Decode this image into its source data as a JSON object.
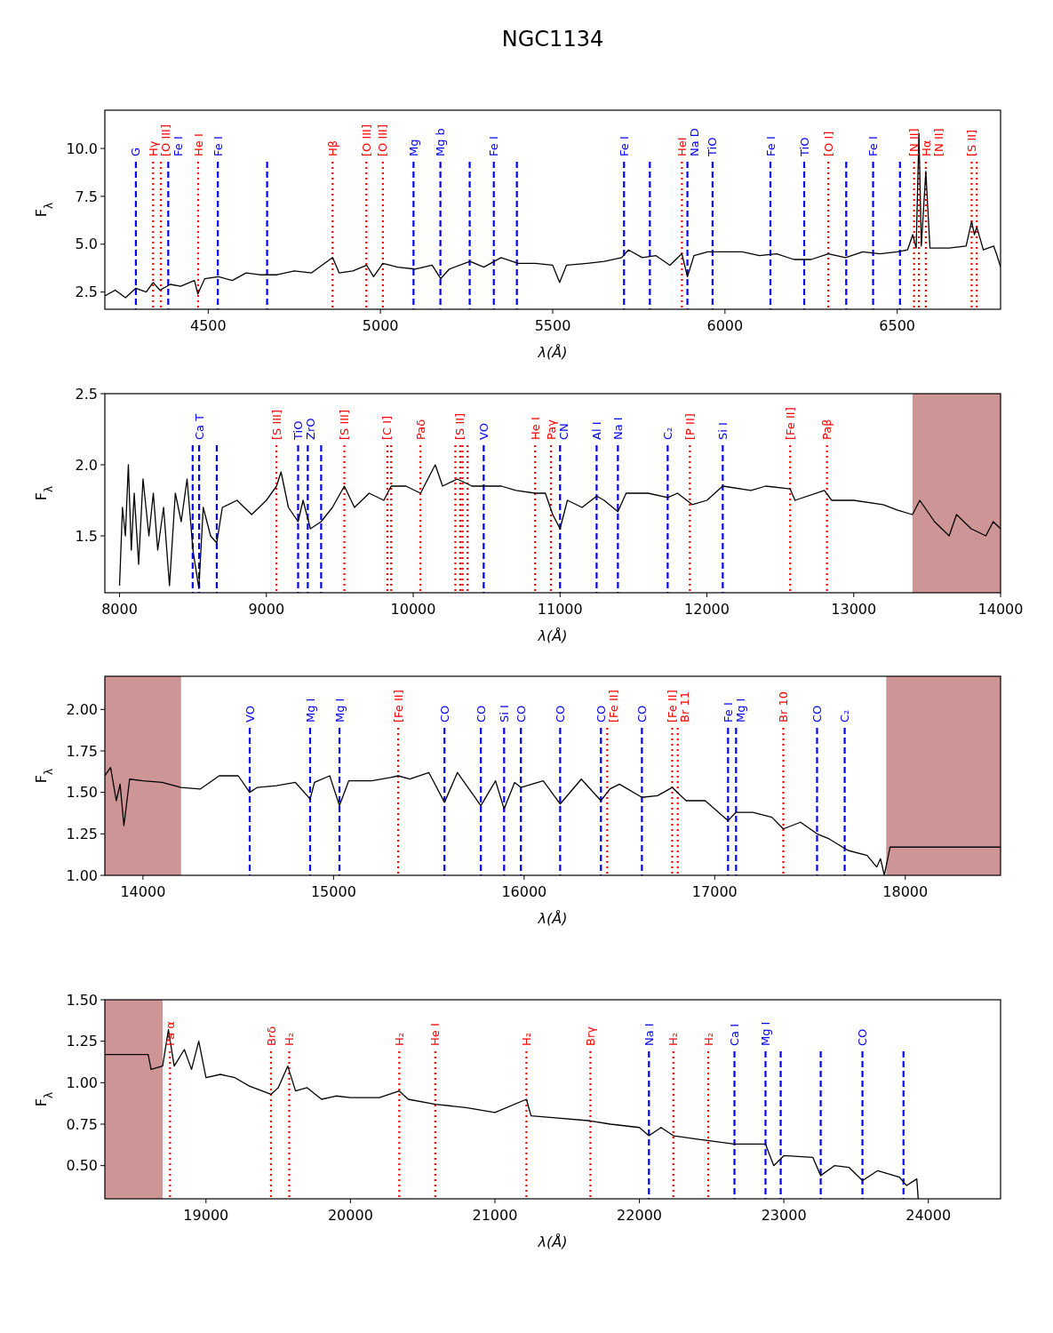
{
  "chart_data": [
    {
      "type": "line",
      "title": "NGC1134",
      "xlabel": "λ(Å)",
      "ylabel": "F$_{λ}$",
      "xlim": [
        4200,
        6800
      ],
      "ylim": [
        1.6,
        12
      ],
      "xticks": [
        4500,
        5000,
        5500,
        6000,
        6500
      ],
      "yticks": [
        2.5,
        {
          "value": 5,
          "label": "5.0"
        },
        7.5,
        {
          "value": 10,
          "label": "10.0"
        }
      ],
      "series": [
        {
          "color": "#000000",
          "x": [
            4200,
            4230,
            4260,
            4290,
            4320,
            4340,
            4360,
            4390,
            4420,
            4460,
            4470,
            4490,
            4530,
            4570,
            4610,
            4650,
            4700,
            4750,
            4800,
            4861,
            4880,
            4920,
            4960,
            4980,
            5007,
            5050,
            5100,
            5150,
            5175,
            5200,
            5260,
            5300,
            5350,
            5400,
            5450,
            5500,
            5520,
            5540,
            5600,
            5650,
            5700,
            5720,
            5760,
            5800,
            5840,
            5875,
            5891,
            5910,
            5950,
            6000,
            6050,
            6100,
            6150,
            6200,
            6250,
            6300,
            6350,
            6400,
            6450,
            6500,
            6530,
            6545,
            6555,
            6563,
            6570,
            6583,
            6595,
            6650,
            6700,
            6716,
            6724,
            6731,
            6750,
            6780,
            6790,
            6800
          ],
          "values": [
            2.3,
            2.6,
            2.2,
            2.7,
            2.5,
            3.0,
            2.6,
            2.9,
            2.8,
            3.1,
            2.4,
            3.2,
            3.3,
            3.1,
            3.5,
            3.4,
            3.4,
            3.6,
            3.5,
            4.3,
            3.5,
            3.6,
            3.9,
            3.3,
            4.0,
            3.8,
            3.7,
            3.9,
            3.2,
            3.7,
            4.1,
            3.8,
            4.3,
            4.0,
            4.0,
            3.9,
            3.0,
            3.9,
            4.0,
            4.1,
            4.3,
            4.7,
            4.3,
            4.4,
            3.9,
            4.5,
            3.3,
            4.4,
            4.6,
            4.6,
            4.6,
            4.4,
            4.5,
            4.2,
            4.2,
            4.5,
            4.3,
            4.6,
            4.5,
            4.6,
            4.7,
            5.5,
            4.8,
            10.8,
            4.9,
            8.8,
            4.8,
            4.8,
            4.9,
            6.2,
            5.5,
            5.9,
            4.7,
            4.9,
            4.4,
            3.8
          ]
        }
      ],
      "ref_lines": [
        {
          "axis": "x",
          "value": 4290,
          "label": "G",
          "color": "#0000ff",
          "line_style": "dashed"
        },
        {
          "axis": "x",
          "value": 4340,
          "label": "Hγ",
          "color": "#ff0000",
          "line_style": "dotted"
        },
        {
          "axis": "x",
          "value": 4363,
          "label": "[O III]",
          "color": "#ff0000",
          "line_style": "dotted"
        },
        {
          "axis": "x",
          "value": 4384,
          "label": "Fe I",
          "color": "#0000ff",
          "line_style": "dashed"
        },
        {
          "axis": "x",
          "value": 4471,
          "label": "He I",
          "color": "#ff0000",
          "line_style": "dotted"
        },
        {
          "axis": "x",
          "value": 4528,
          "label": "Fe I",
          "color": "#0000ff",
          "line_style": "dashed"
        },
        {
          "axis": "x",
          "value": 4671,
          "label": null,
          "color": "#0000ff",
          "line_style": "dashed"
        },
        {
          "axis": "x",
          "value": 4861,
          "label": "Hβ",
          "color": "#ff0000",
          "line_style": "dotted"
        },
        {
          "axis": "x",
          "value": 4959,
          "label": "[O III]",
          "color": "#ff0000",
          "line_style": "dotted"
        },
        {
          "axis": "x",
          "value": 5007,
          "label": "[O III]",
          "color": "#ff0000",
          "line_style": "dotted"
        },
        {
          "axis": "x",
          "value": 5096,
          "label": "Mg",
          "color": "#0000ff",
          "line_style": "dashed"
        },
        {
          "axis": "x",
          "value": 5174,
          "label": "Mg b",
          "color": "#0000ff",
          "line_style": "dashed"
        },
        {
          "axis": "x",
          "value": 5259,
          "label": null,
          "color": "#0000ff",
          "line_style": "dashed"
        },
        {
          "axis": "x",
          "value": 5329,
          "label": "Fe I",
          "color": "#0000ff",
          "line_style": "dashed"
        },
        {
          "axis": "x",
          "value": 5396,
          "label": null,
          "color": "#0000ff",
          "line_style": "dashed"
        },
        {
          "axis": "x",
          "value": 5707,
          "label": "Fe I",
          "color": "#0000ff",
          "line_style": "dashed"
        },
        {
          "axis": "x",
          "value": 5782,
          "label": null,
          "color": "#0000ff",
          "line_style": "dashed"
        },
        {
          "axis": "x",
          "value": 5875,
          "label": "HeI",
          "color": "#ff0000",
          "line_style": "dotted"
        },
        {
          "axis": "x",
          "value": 5891,
          "label": "Na D",
          "color": "#0000ff",
          "line_style": "dashed"
        },
        {
          "axis": "x",
          "value": 5964,
          "label": "TiO",
          "color": "#0000ff",
          "line_style": "dashed"
        },
        {
          "axis": "x",
          "value": 6132,
          "label": "Fe I",
          "color": "#0000ff",
          "line_style": "dashed"
        },
        {
          "axis": "x",
          "value": 6230,
          "label": "TiO",
          "color": "#0000ff",
          "line_style": "dashed"
        },
        {
          "axis": "x",
          "value": 6300,
          "label": "[O I]",
          "color": "#ff0000",
          "line_style": "dotted"
        },
        {
          "axis": "x",
          "value": 6352,
          "label": null,
          "color": "#0000ff",
          "line_style": "dashed"
        },
        {
          "axis": "x",
          "value": 6430,
          "label": "Fe I",
          "color": "#0000ff",
          "line_style": "dashed"
        },
        {
          "axis": "x",
          "value": 6508,
          "label": null,
          "color": "#0000ff",
          "line_style": "dashed"
        },
        {
          "axis": "x",
          "value": 6549,
          "label": "[N II]",
          "color": "#ff0000",
          "line_style": "dotted"
        },
        {
          "axis": "x",
          "value": 6563,
          "label": "Hα",
          "color": "#ff0000",
          "line_style": "dotted"
        },
        {
          "axis": "x",
          "value": 6583,
          "label": "[N II]",
          "color": "#ff0000",
          "line_style": "dotted"
        },
        {
          "axis": "x",
          "value": 6716,
          "label": "[S II]",
          "color": "#ff0000",
          "line_style": "dotted"
        },
        {
          "axis": "x",
          "value": 6731,
          "label": null,
          "color": "#ff0000",
          "line_style": "dotted"
        }
      ]
    },
    {
      "type": "line",
      "xlabel": "λ(Å)",
      "ylabel": "F$_{λ}$",
      "xlim": [
        7900,
        14000
      ],
      "ylim": [
        1.1,
        2.5
      ],
      "xticks": [
        8000,
        9000,
        10000,
        11000,
        12000,
        13000,
        14000
      ],
      "yticks": [
        1.5,
        {
          "value": 2,
          "label": "2.0"
        },
        2.5
      ],
      "series": [
        {
          "color": "#000000",
          "x": [
            8000,
            8020,
            8040,
            8060,
            8080,
            8100,
            8130,
            8160,
            8200,
            8230,
            8260,
            8300,
            8340,
            8380,
            8420,
            8460,
            8500,
            8540,
            8570,
            8620,
            8662,
            8700,
            8800,
            8900,
            9000,
            9069,
            9100,
            9150,
            9216,
            9250,
            9300,
            9373,
            9450,
            9531,
            9600,
            9700,
            9800,
            9850,
            9950,
            10050,
            10100,
            10150,
            10200,
            10300,
            10400,
            10500,
            10600,
            10700,
            10830,
            10900,
            10950,
            11000,
            11050,
            11150,
            11250,
            11300,
            11394,
            11450,
            11600,
            11733,
            11800,
            11900,
            12000,
            12108,
            12300,
            12400,
            12567,
            12600,
            12800,
            12850,
            13000,
            13200,
            13300,
            13400,
            13450,
            13550,
            13650,
            13700,
            13800,
            13900,
            13950,
            14000
          ],
          "values": [
            1.15,
            1.7,
            1.5,
            2.0,
            1.4,
            1.8,
            1.3,
            1.9,
            1.5,
            1.8,
            1.4,
            1.7,
            1.15,
            1.8,
            1.6,
            1.9,
            1.4,
            1.13,
            1.7,
            1.5,
            1.45,
            1.7,
            1.75,
            1.65,
            1.75,
            1.85,
            1.95,
            1.7,
            1.6,
            1.75,
            1.55,
            1.6,
            1.7,
            1.85,
            1.7,
            1.8,
            1.75,
            1.85,
            1.85,
            1.8,
            1.9,
            2.0,
            1.85,
            1.9,
            1.85,
            1.85,
            1.85,
            1.82,
            1.8,
            1.8,
            1.65,
            1.55,
            1.75,
            1.7,
            1.78,
            1.75,
            1.67,
            1.8,
            1.8,
            1.77,
            1.8,
            1.72,
            1.75,
            1.85,
            1.82,
            1.85,
            1.83,
            1.75,
            1.82,
            1.75,
            1.75,
            1.72,
            1.68,
            1.65,
            1.75,
            1.6,
            1.5,
            1.65,
            1.55,
            1.5,
            1.6,
            1.55
          ]
        }
      ],
      "bands": [
        {
          "axis": "x",
          "from": 13400,
          "to": 14000,
          "color": "#cd9595"
        }
      ],
      "ref_lines": [
        {
          "axis": "x",
          "value": 8498,
          "label": null,
          "color": "#0000ff",
          "line_style": "dashed"
        },
        {
          "axis": "x",
          "value": 8542,
          "label": "Ca T",
          "color": "#0000ff",
          "line_style": "dashed"
        },
        {
          "axis": "x",
          "value": 8662,
          "label": null,
          "color": "#0000ff",
          "line_style": "dashed"
        },
        {
          "axis": "x",
          "value": 9069,
          "label": "[S III]",
          "color": "#ff0000",
          "line_style": "dotted"
        },
        {
          "axis": "x",
          "value": 9216,
          "label": "TiO",
          "color": "#0000ff",
          "line_style": "dashed"
        },
        {
          "axis": "x",
          "value": 9282,
          "label": "ZrO",
          "color": "#0000ff",
          "line_style": "dashed"
        },
        {
          "axis": "x",
          "value": 9373,
          "label": null,
          "color": "#0000ff",
          "line_style": "dashed"
        },
        {
          "axis": "x",
          "value": 9531,
          "label": "[S III]",
          "color": "#ff0000",
          "line_style": "dotted"
        },
        {
          "axis": "x",
          "value": 9824,
          "label": "[C I]",
          "color": "#ff0000",
          "line_style": "dotted"
        },
        {
          "axis": "x",
          "value": 9850,
          "label": null,
          "color": "#ff0000",
          "line_style": "dotted"
        },
        {
          "axis": "x",
          "value": 10049,
          "label": "Paδ",
          "color": "#ff0000",
          "line_style": "dotted"
        },
        {
          "axis": "x",
          "value": 10287,
          "label": null,
          "color": "#ff0000",
          "line_style": "dotted"
        },
        {
          "axis": "x",
          "value": 10320,
          "label": "[S II]",
          "color": "#ff0000",
          "line_style": "dotted"
        },
        {
          "axis": "x",
          "value": 10336,
          "label": null,
          "color": "#ff0000",
          "line_style": "dotted"
        },
        {
          "axis": "x",
          "value": 10370,
          "label": null,
          "color": "#ff0000",
          "line_style": "dotted"
        },
        {
          "axis": "x",
          "value": 10480,
          "label": "VO",
          "color": "#0000ff",
          "line_style": "dashed"
        },
        {
          "axis": "x",
          "value": 10830,
          "label": "He I",
          "color": "#ff0000",
          "line_style": "dotted"
        },
        {
          "axis": "x",
          "value": 10938,
          "label": "Paγ",
          "color": "#ff0000",
          "line_style": "dotted"
        },
        {
          "axis": "x",
          "value": 11000,
          "label": "CN",
          "color": "#0000ff",
          "line_style": "dashed"
        },
        {
          "axis": "x",
          "value": 11249,
          "label": "Al I",
          "color": "#0000ff",
          "line_style": "dashed"
        },
        {
          "axis": "x",
          "value": 11394,
          "label": "Na I",
          "color": "#0000ff",
          "line_style": "dashed"
        },
        {
          "axis": "x",
          "value": 11733,
          "label": "C₂",
          "color": "#0000ff",
          "line_style": "dashed"
        },
        {
          "axis": "x",
          "value": 11884,
          "label": "[P II]",
          "color": "#ff0000",
          "line_style": "dotted"
        },
        {
          "axis": "x",
          "value": 12108,
          "label": "Si I",
          "color": "#0000ff",
          "line_style": "dashed"
        },
        {
          "axis": "x",
          "value": 12567,
          "label": "[Fe II]",
          "color": "#ff0000",
          "line_style": "dotted"
        },
        {
          "axis": "x",
          "value": 12818,
          "label": "Paβ",
          "color": "#ff0000",
          "line_style": "dotted"
        }
      ]
    },
    {
      "type": "line",
      "xlabel": "λ(Å)",
      "ylabel": "F$_{λ}$",
      "xlim": [
        13800,
        18500
      ],
      "ylim": [
        1.0,
        2.2
      ],
      "xticks": [
        14000,
        15000,
        16000,
        17000,
        18000
      ],
      "yticks": [
        {
          "value": 1,
          "label": "1.00"
        },
        1.25,
        {
          "value": 1.5,
          "label": "1.50"
        },
        1.75,
        {
          "value": 2,
          "label": "2.00"
        }
      ],
      "series": [
        {
          "color": "#000000",
          "x": [
            13800,
            13830,
            13860,
            13880,
            13900,
            13930,
            14000,
            14100,
            14200,
            14300,
            14400,
            14500,
            14560,
            14600,
            14700,
            14800,
            14877,
            14900,
            14980,
            15031,
            15080,
            15200,
            15300,
            15339,
            15400,
            15500,
            15582,
            15650,
            15773,
            15850,
            15895,
            15950,
            15983,
            16100,
            16189,
            16300,
            16403,
            16450,
            16500,
            16618,
            16700,
            16777,
            16850,
            16950,
            17070,
            17112,
            17200,
            17300,
            17360,
            17450,
            17537,
            17600,
            17700,
            17800,
            17850,
            17870,
            17890,
            17920,
            18500
          ],
          "values": [
            1.6,
            1.65,
            1.45,
            1.55,
            1.3,
            1.58,
            1.57,
            1.56,
            1.53,
            1.52,
            1.6,
            1.6,
            1.5,
            1.53,
            1.54,
            1.56,
            1.46,
            1.56,
            1.6,
            1.42,
            1.57,
            1.57,
            1.59,
            1.6,
            1.58,
            1.62,
            1.44,
            1.62,
            1.42,
            1.57,
            1.4,
            1.56,
            1.53,
            1.57,
            1.43,
            1.58,
            1.45,
            1.52,
            1.55,
            1.47,
            1.48,
            1.53,
            1.45,
            1.45,
            1.33,
            1.38,
            1.38,
            1.35,
            1.28,
            1.32,
            1.25,
            1.22,
            1.15,
            1.12,
            1.05,
            1.1,
            1.0,
            1.17,
            1.17
          ]
        }
      ],
      "bands": [
        {
          "axis": "x",
          "from": 13800,
          "to": 14200,
          "color": "#cd9595"
        },
        {
          "axis": "x",
          "from": 17900,
          "to": 18500,
          "color": "#cd9595"
        }
      ],
      "ref_lines": [
        {
          "axis": "x",
          "value": 14560,
          "label": "VO",
          "color": "#0000ff",
          "line_style": "dashed"
        },
        {
          "axis": "x",
          "value": 14877,
          "label": "Mg I",
          "color": "#0000ff",
          "line_style": "dashed"
        },
        {
          "axis": "x",
          "value": 15031,
          "label": "Mg I",
          "color": "#0000ff",
          "line_style": "dashed"
        },
        {
          "axis": "x",
          "value": 15339,
          "label": "[Fe II]",
          "color": "#ff0000",
          "line_style": "dotted"
        },
        {
          "axis": "x",
          "value": 15582,
          "label": "CO",
          "color": "#0000ff",
          "line_style": "dashed"
        },
        {
          "axis": "x",
          "value": 15773,
          "label": "CO",
          "color": "#0000ff",
          "line_style": "dashed"
        },
        {
          "axis": "x",
          "value": 15895,
          "label": "Si I",
          "color": "#0000ff",
          "line_style": "dashed"
        },
        {
          "axis": "x",
          "value": 15983,
          "label": "CO",
          "color": "#0000ff",
          "line_style": "dashed"
        },
        {
          "axis": "x",
          "value": 16189,
          "label": "CO",
          "color": "#0000ff",
          "line_style": "dashed"
        },
        {
          "axis": "x",
          "value": 16403,
          "label": "CO",
          "color": "#0000ff",
          "line_style": "dashed"
        },
        {
          "axis": "x",
          "value": 16436,
          "label": "[Fe II]",
          "color": "#ff0000",
          "line_style": "dotted"
        },
        {
          "axis": "x",
          "value": 16618,
          "label": "CO",
          "color": "#0000ff",
          "line_style": "dashed"
        },
        {
          "axis": "x",
          "value": 16777,
          "label": "[Fe II]",
          "color": "#ff0000",
          "line_style": "dotted"
        },
        {
          "axis": "x",
          "value": 16806,
          "label": "Br 11",
          "color": "#ff0000",
          "line_style": "dotted"
        },
        {
          "axis": "x",
          "value": 17070,
          "label": "Fe I",
          "color": "#0000ff",
          "line_style": "dashed"
        },
        {
          "axis": "x",
          "value": 17112,
          "label": "Mg I",
          "color": "#0000ff",
          "line_style": "dashed"
        },
        {
          "axis": "x",
          "value": 17360,
          "label": "Br 10",
          "color": "#ff0000",
          "line_style": "dotted"
        },
        {
          "axis": "x",
          "value": 17537,
          "label": "CO",
          "color": "#0000ff",
          "line_style": "dashed"
        },
        {
          "axis": "x",
          "value": 17682,
          "label": "C₂",
          "color": "#0000ff",
          "line_style": "dashed"
        }
      ]
    },
    {
      "type": "line",
      "xlabel": "λ(Å)",
      "ylabel": "F$_{λ}$",
      "xlim": [
        18300,
        24500
      ],
      "ylim": [
        0.3,
        1.5
      ],
      "xticks": [
        19000,
        20000,
        21000,
        22000,
        23000,
        24000
      ],
      "yticks": [
        {
          "value": 0.5,
          "label": "0.50"
        },
        0.75,
        {
          "value": 1,
          "label": "1.00"
        },
        1.25,
        {
          "value": 1.5,
          "label": "1.50"
        }
      ],
      "series": [
        {
          "color": "#000000",
          "x": [
            18300,
            18600,
            18620,
            18700,
            18740,
            18780,
            18850,
            18900,
            18950,
            19000,
            19100,
            19200,
            19300,
            19450,
            19500,
            19566,
            19620,
            19700,
            19800,
            19900,
            20000,
            20200,
            20338,
            20400,
            20587,
            20800,
            21000,
            21218,
            21250,
            21400,
            21661,
            21800,
            22000,
            22066,
            22150,
            22235,
            22400,
            22658,
            22873,
            22930,
            23000,
            23200,
            23255,
            23350,
            23450,
            23544,
            23650,
            23800,
            23850,
            23920,
            23930
          ],
          "values": [
            1.17,
            1.17,
            1.08,
            1.1,
            1.32,
            1.1,
            1.2,
            1.08,
            1.25,
            1.03,
            1.05,
            1.03,
            0.98,
            0.93,
            0.97,
            1.1,
            0.95,
            0.97,
            0.9,
            0.92,
            0.91,
            0.91,
            0.95,
            0.9,
            0.87,
            0.85,
            0.82,
            0.9,
            0.8,
            0.79,
            0.77,
            0.75,
            0.73,
            0.68,
            0.73,
            0.68,
            0.66,
            0.63,
            0.63,
            0.5,
            0.56,
            0.55,
            0.44,
            0.5,
            0.49,
            0.41,
            0.47,
            0.43,
            0.38,
            0.42,
            0.3
          ]
        }
      ],
      "bands": [
        {
          "axis": "x",
          "from": 18300,
          "to": 18700,
          "color": "#cd9595"
        }
      ],
      "ref_lines": [
        {
          "axis": "x",
          "value": 18751,
          "label": "Pa α",
          "color": "#ff0000",
          "line_style": "dotted"
        },
        {
          "axis": "x",
          "value": 19450,
          "label": "Brδ",
          "color": "#ff0000",
          "line_style": "dotted"
        },
        {
          "axis": "x",
          "value": 19576,
          "label": "H₂",
          "color": "#ff0000",
          "line_style": "dotted"
        },
        {
          "axis": "x",
          "value": 20338,
          "label": "H₂",
          "color": "#ff0000",
          "line_style": "dotted"
        },
        {
          "axis": "x",
          "value": 20587,
          "label": "He I",
          "color": "#ff0000",
          "line_style": "dotted"
        },
        {
          "axis": "x",
          "value": 21218,
          "label": "H₂",
          "color": "#ff0000",
          "line_style": "dotted"
        },
        {
          "axis": "x",
          "value": 21661,
          "label": "Brγ",
          "color": "#ff0000",
          "line_style": "dotted"
        },
        {
          "axis": "x",
          "value": 22066,
          "label": "Na I",
          "color": "#0000ff",
          "line_style": "dashed"
        },
        {
          "axis": "x",
          "value": 22235,
          "label": "H₂",
          "color": "#ff0000",
          "line_style": "dotted"
        },
        {
          "axis": "x",
          "value": 22477,
          "label": "H₂",
          "color": "#ff0000",
          "line_style": "dotted"
        },
        {
          "axis": "x",
          "value": 22658,
          "label": "Ca I",
          "color": "#0000ff",
          "line_style": "dashed"
        },
        {
          "axis": "x",
          "value": 22873,
          "label": "Mg I",
          "color": "#0000ff",
          "line_style": "dashed"
        },
        {
          "axis": "x",
          "value": 22978,
          "label": null,
          "color": "#0000ff",
          "line_style": "dashed"
        },
        {
          "axis": "x",
          "value": 23255,
          "label": null,
          "color": "#0000ff",
          "line_style": "dashed"
        },
        {
          "axis": "x",
          "value": 23544,
          "label": "CO",
          "color": "#0000ff",
          "line_style": "dashed"
        },
        {
          "axis": "x",
          "value": 23828,
          "label": null,
          "color": "#0000ff",
          "line_style": "dashed"
        }
      ]
    }
  ]
}
